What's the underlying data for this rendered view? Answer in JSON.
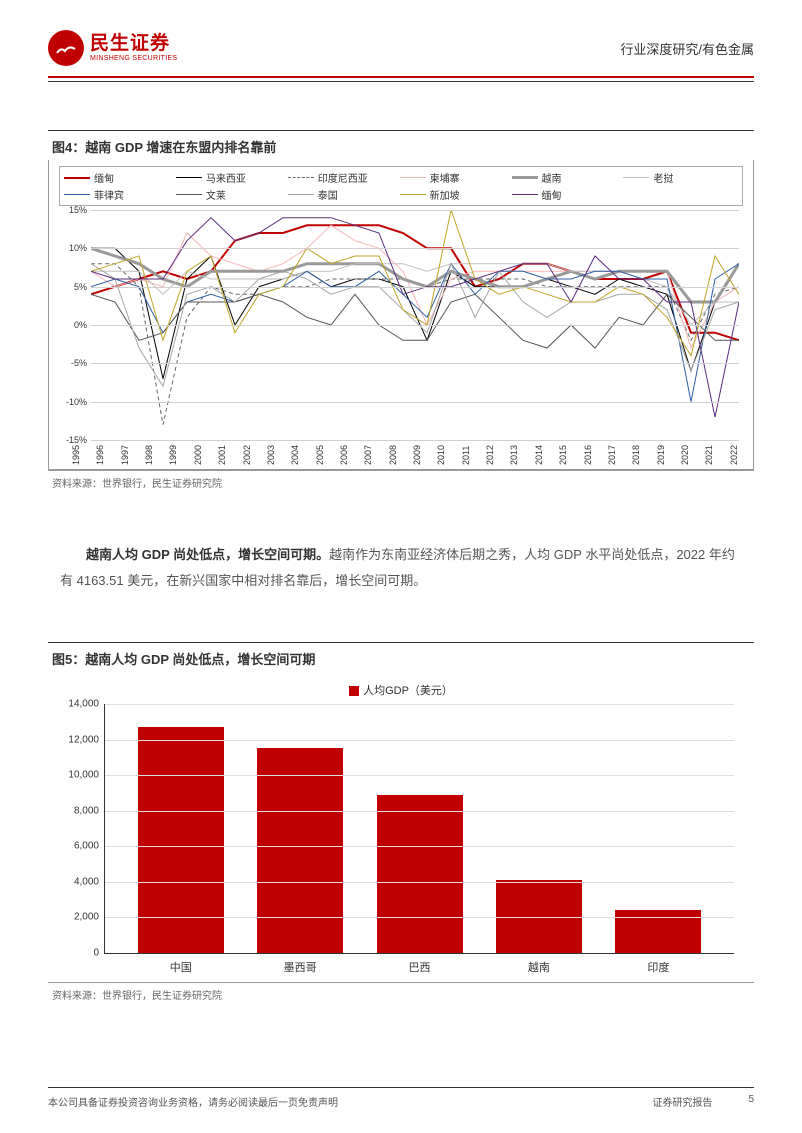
{
  "header": {
    "logo_cn": "民生证券",
    "logo_en": "MINSHENG SECURITIES",
    "breadcrumb": "行业深度研究/有色金属"
  },
  "figure4": {
    "title": "图4：越南 GDP 增速在东盟内排名靠前",
    "type": "line",
    "ylim": [
      -15,
      15
    ],
    "yticks": [
      -15,
      -10,
      -5,
      0,
      5,
      10,
      15
    ],
    "ytick_labels": [
      "-15%",
      "-10%",
      "-5%",
      "0%",
      "5%",
      "10%",
      "15%"
    ],
    "years": [
      "1995",
      "1996",
      "1997",
      "1998",
      "1999",
      "2000",
      "2001",
      "2002",
      "2003",
      "2004",
      "2005",
      "2006",
      "2007",
      "2008",
      "2009",
      "2010",
      "2011",
      "2012",
      "2013",
      "2014",
      "2015",
      "2016",
      "2017",
      "2018",
      "2019",
      "2020",
      "2021",
      "2022"
    ],
    "grid_color": "#d0d0d0",
    "background_color": "#ffffff",
    "legend": [
      {
        "label": "缅甸",
        "color": "#c00000",
        "dash": "solid",
        "width": 2
      },
      {
        "label": "马来西亚",
        "color": "#000000",
        "dash": "solid",
        "width": 1
      },
      {
        "label": "印度尼西亚",
        "color": "#666666",
        "dash": "dashed",
        "width": 1
      },
      {
        "label": "柬埔寨",
        "color": "#f4b6b6",
        "dash": "solid",
        "width": 1
      },
      {
        "label": "越南",
        "color": "#999999",
        "dash": "solid",
        "width": 3
      },
      {
        "label": "老挝",
        "color": "#bfbfbf",
        "dash": "solid",
        "width": 1
      },
      {
        "label": "菲律宾",
        "color": "#2e5fa4",
        "dash": "solid",
        "width": 1
      },
      {
        "label": "文莱",
        "color": "#555555",
        "dash": "solid",
        "width": 1
      },
      {
        "label": "泰国",
        "color": "#a6a6a6",
        "dash": "solid",
        "width": 1
      },
      {
        "label": "新加坡",
        "color": "#bfa528",
        "dash": "solid",
        "width": 1
      },
      {
        "label": "缅甸",
        "color": "#5b2d7f",
        "dash": "solid",
        "width": 1
      }
    ],
    "series": {
      "miandian_r": {
        "color": "#c00000",
        "dash": "solid",
        "width": 2,
        "values": [
          4,
          5,
          6,
          7,
          6,
          7,
          11,
          12,
          12,
          13,
          13,
          13,
          13,
          12,
          10,
          10,
          5,
          6,
          8,
          8,
          7,
          6,
          6,
          6,
          7,
          -1,
          -1,
          -2
        ]
      },
      "malaixiya": {
        "color": "#000000",
        "dash": "solid",
        "width": 1,
        "values": [
          10,
          10,
          7,
          -7,
          6,
          9,
          0,
          5,
          6,
          7,
          5,
          6,
          6,
          5,
          -2,
          7,
          5,
          5,
          5,
          6,
          5,
          4,
          6,
          5,
          4,
          -6,
          3,
          8
        ]
      },
      "yindunixiya": {
        "color": "#666666",
        "dash": "dashed",
        "width": 1,
        "values": [
          8,
          8,
          5,
          -13,
          1,
          5,
          4,
          4,
          5,
          5,
          6,
          6,
          6,
          6,
          5,
          6,
          6,
          6,
          6,
          5,
          5,
          5,
          5,
          5,
          5,
          -2,
          4,
          5
        ]
      },
      "jianpuzhai": {
        "color": "#f4b6b6",
        "dash": "solid",
        "width": 1,
        "values": [
          7,
          5,
          6,
          5,
          12,
          9,
          8,
          7,
          8,
          10,
          13,
          11,
          10,
          7,
          0,
          6,
          7,
          7,
          7,
          7,
          7,
          7,
          7,
          7,
          7,
          -3,
          3,
          5
        ]
      },
      "yuenan": {
        "color": "#999999",
        "dash": "solid",
        "width": 3,
        "values": [
          10,
          9,
          8,
          6,
          5,
          7,
          7,
          7,
          7,
          8,
          8,
          8,
          8,
          6,
          5,
          7,
          6,
          5,
          5,
          6,
          7,
          6,
          7,
          7,
          7,
          3,
          3,
          8
        ]
      },
      "laowo": {
        "color": "#bfbfbf",
        "dash": "solid",
        "width": 1,
        "values": [
          7,
          7,
          7,
          4,
          7,
          6,
          6,
          6,
          6,
          7,
          7,
          8,
          8,
          8,
          7,
          8,
          8,
          8,
          8,
          8,
          7,
          7,
          7,
          6,
          5,
          0,
          3,
          3
        ]
      },
      "feilvbin": {
        "color": "#2e5fa4",
        "dash": "solid",
        "width": 1,
        "values": [
          5,
          6,
          5,
          -1,
          3,
          4,
          3,
          4,
          5,
          7,
          5,
          5,
          7,
          4,
          1,
          8,
          4,
          7,
          7,
          6,
          6,
          7,
          7,
          6,
          6,
          -10,
          6,
          8
        ]
      },
      "wenlai": {
        "color": "#555555",
        "dash": "solid",
        "width": 1,
        "values": [
          4,
          3,
          -2,
          -1,
          3,
          3,
          3,
          4,
          3,
          1,
          0,
          4,
          0,
          -2,
          -2,
          3,
          4,
          1,
          -2,
          -3,
          0,
          -3,
          1,
          0,
          4,
          1,
          -2,
          -2
        ]
      },
      "taiguo": {
        "color": "#a6a6a6",
        "dash": "solid",
        "width": 1,
        "values": [
          8,
          6,
          -3,
          -8,
          4,
          5,
          3,
          6,
          7,
          6,
          4,
          5,
          5,
          2,
          -1,
          8,
          1,
          7,
          3,
          1,
          3,
          3,
          4,
          4,
          2,
          -6,
          2,
          3
        ]
      },
      "xinjiapo": {
        "color": "#bfa528",
        "dash": "solid",
        "width": 1,
        "values": [
          7,
          8,
          9,
          -2,
          7,
          9,
          -1,
          4,
          5,
          10,
          8,
          9,
          9,
          2,
          0,
          15,
          6,
          4,
          5,
          4,
          3,
          3,
          5,
          4,
          1,
          -4,
          9,
          4
        ]
      },
      "miandian_p": {
        "color": "#5b2d7f",
        "dash": "solid",
        "width": 1,
        "values": [
          7,
          6,
          6,
          6,
          11,
          14,
          11,
          12,
          14,
          14,
          14,
          13,
          12,
          4,
          5,
          5,
          6,
          7,
          8,
          8,
          3,
          9,
          6,
          6,
          3,
          3,
          -12,
          3
        ]
      }
    },
    "source": "资料来源：世界银行，民生证券研究院"
  },
  "paragraph": {
    "lead": "越南人均 GDP 尚处低点，增长空间可期。",
    "rest": "越南作为东南亚经济体后期之秀，人均 GDP 水平尚处低点，2022 年约有 4163.51 美元，在新兴国家中相对排名靠后，增长空间可期。"
  },
  "figure5": {
    "title": "图5：越南人均 GDP 尚处低点，增长空间可期",
    "type": "bar",
    "legend_label": "人均GDP（美元）",
    "ymax": 14000,
    "ytick_step": 2000,
    "yticks": [
      0,
      2000,
      4000,
      6000,
      8000,
      10000,
      12000,
      14000
    ],
    "ytick_labels": [
      "0",
      "2,000",
      "4,000",
      "6,000",
      "8,000",
      "10,000",
      "12,000",
      "14,000"
    ],
    "categories": [
      "中国",
      "墨西哥",
      "巴西",
      "越南",
      "印度"
    ],
    "values": [
      12700,
      11500,
      8900,
      4100,
      2400
    ],
    "bar_color": "#c00000",
    "grid_color": "#dddddd",
    "background_color": "#ffffff",
    "bar_width": 0.72,
    "source": "资料来源：世界银行，民生证券研究院"
  },
  "footer": {
    "left": "本公司具备证券投资咨询业务资格，请务必阅读最后一页免责声明",
    "right1": "证券研究报告",
    "right2": "5"
  },
  "colors": {
    "accent": "#c00000",
    "text": "#333333",
    "muted": "#666666"
  }
}
